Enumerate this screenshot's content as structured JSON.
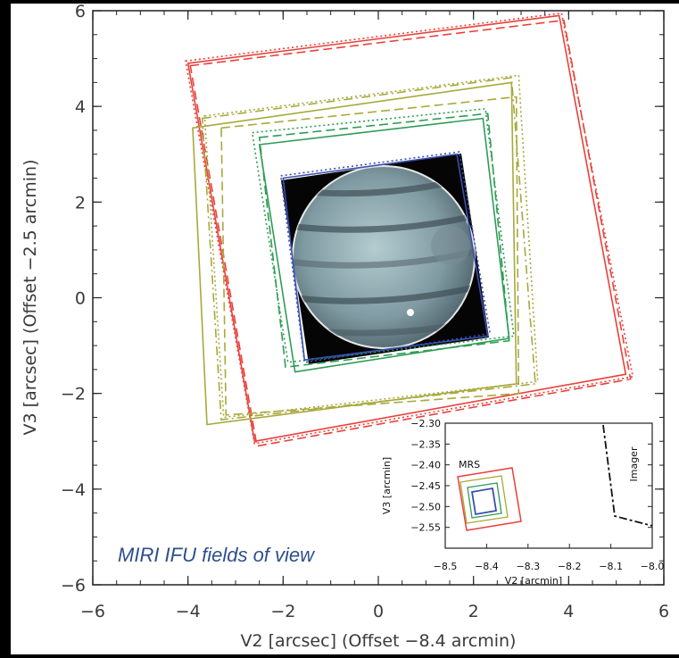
{
  "chart_data": {
    "type": "scatter",
    "subtype": "field-of-view footprints",
    "title": "",
    "annotation": "MIRI IFU fields of view",
    "xlabel": "V2 [arcsec] (Offset −8.4 arcmin)",
    "ylabel": "V3 [arcsec] (Offset −2.5 arcmin)",
    "xlim": [
      -6,
      6
    ],
    "ylim": [
      -6,
      6
    ],
    "xticks": [
      "−6",
      "−4",
      "−2",
      "0",
      "2",
      "4",
      "6"
    ],
    "yticks": [
      "−6",
      "−4",
      "−2",
      "0",
      "2",
      "4",
      "6"
    ],
    "grid": false,
    "colors": {
      "red": "#e8413a",
      "olive": "#a8a93c",
      "green": "#2f9c55",
      "blue": "#3a4fb0"
    },
    "series": [
      {
        "color": "red",
        "style": "solid",
        "corners": [
          [
            -4.0,
            4.9
          ],
          [
            3.8,
            5.9
          ],
          [
            5.2,
            -1.6
          ],
          [
            -2.6,
            -3.0
          ]
        ]
      },
      {
        "color": "red",
        "style": "dashed",
        "corners": [
          [
            -3.95,
            4.85
          ],
          [
            3.9,
            5.8
          ],
          [
            5.3,
            -1.7
          ],
          [
            -2.55,
            -3.1
          ]
        ]
      },
      {
        "color": "red",
        "style": "dotted",
        "corners": [
          [
            -4.05,
            4.95
          ],
          [
            3.85,
            5.95
          ],
          [
            5.35,
            -1.65
          ],
          [
            -2.6,
            -3.05
          ]
        ]
      },
      {
        "color": "olive",
        "style": "solid",
        "corners": [
          [
            -3.9,
            3.55
          ],
          [
            2.8,
            4.5
          ],
          [
            2.9,
            -1.8
          ],
          [
            -3.6,
            -2.65
          ]
        ]
      },
      {
        "color": "olive",
        "style": "dashed",
        "corners": [
          [
            -3.3,
            3.55
          ],
          [
            2.9,
            4.2
          ],
          [
            2.95,
            -2.0
          ],
          [
            -3.2,
            -2.45
          ]
        ]
      },
      {
        "color": "olive",
        "style": "dashdot",
        "corners": [
          [
            -3.7,
            3.75
          ],
          [
            2.8,
            4.6
          ],
          [
            3.3,
            -1.8
          ],
          [
            -3.3,
            -2.55
          ]
        ]
      },
      {
        "color": "olive",
        "style": "dotted",
        "corners": [
          [
            -3.65,
            3.8
          ],
          [
            2.95,
            4.65
          ],
          [
            3.35,
            -1.75
          ],
          [
            -3.25,
            -2.5
          ]
        ]
      },
      {
        "color": "green",
        "style": "solid",
        "corners": [
          [
            -2.5,
            3.2
          ],
          [
            2.2,
            3.75
          ],
          [
            2.75,
            -0.85
          ],
          [
            -1.75,
            -1.55
          ]
        ]
      },
      {
        "color": "green",
        "style": "dashed",
        "corners": [
          [
            -2.5,
            3.35
          ],
          [
            2.3,
            3.85
          ],
          [
            2.75,
            -0.9
          ],
          [
            -1.95,
            -1.45
          ]
        ]
      },
      {
        "color": "green",
        "style": "dotted",
        "corners": [
          [
            -2.65,
            3.45
          ],
          [
            2.25,
            3.95
          ],
          [
            2.85,
            -0.8
          ],
          [
            -1.9,
            -1.35
          ]
        ]
      },
      {
        "color": "blue",
        "style": "solid",
        "corners": [
          [
            -2.0,
            2.5
          ],
          [
            1.65,
            3.0
          ],
          [
            2.3,
            -0.8
          ],
          [
            -1.55,
            -1.3
          ]
        ]
      },
      {
        "color": "blue",
        "style": "dotted",
        "corners": [
          [
            -2.05,
            2.55
          ],
          [
            1.7,
            3.05
          ],
          [
            2.35,
            -0.75
          ],
          [
            -1.55,
            -1.35
          ]
        ]
      }
    ],
    "inset": {
      "xlabel": "V2 [arcmin]",
      "ylabel": "V3 [arcmin]",
      "xlim": [
        -8.5,
        -8.0
      ],
      "ylim": [
        -2.6,
        -2.3
      ],
      "xticks": [
        "−8.5",
        "−8.4",
        "−8.3",
        "−8.2",
        "−8.1",
        "−8.0"
      ],
      "yticks": [
        "−2.30",
        "−2.35",
        "−2.40",
        "−2.45",
        "−2.50",
        "−2.55"
      ],
      "labels": {
        "mrs": "MRS",
        "imager": "Imager"
      }
    }
  }
}
